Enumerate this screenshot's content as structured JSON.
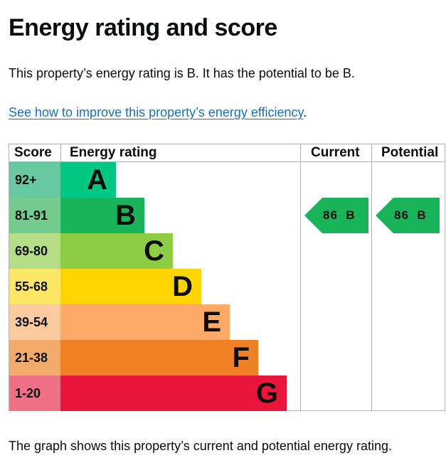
{
  "title": "Energy rating and score",
  "intro": "This property’s energy rating is B. It has the potential to be B.",
  "link": {
    "text": "See how to improve this property’s energy efficiency",
    "suffix": "."
  },
  "footer": "The graph shows this property’s current and potential energy rating.",
  "colors": {
    "link": "#1d70b8",
    "border": "#b1b4b6",
    "text": "#0b0c0c"
  },
  "chart_data": {
    "type": "table",
    "headers": {
      "score": "Score",
      "rating": "Energy rating",
      "current": "Current",
      "potential": "Potential"
    },
    "bands": [
      {
        "range": "92+",
        "letter": "A",
        "bar_color": "#00c781",
        "score_bg": "#67c9a0"
      },
      {
        "range": "81-91",
        "letter": "B",
        "bar_color": "#19b459",
        "score_bg": "#75cc8f"
      },
      {
        "range": "69-80",
        "letter": "C",
        "bar_color": "#8dce46",
        "score_bg": "#b5dd85"
      },
      {
        "range": "55-68",
        "letter": "D",
        "bar_color": "#ffd500",
        "score_bg": "#ffe766"
      },
      {
        "range": "39-54",
        "letter": "E",
        "bar_color": "#fcaa65",
        "score_bg": "#fbcb9f"
      },
      {
        "range": "21-38",
        "letter": "F",
        "bar_color": "#ef8023",
        "score_bg": "#f4aa6b"
      },
      {
        "range": "1-20",
        "letter": "G",
        "bar_color": "#e9153b",
        "score_bg": "#f07186"
      }
    ],
    "current": {
      "score": "86",
      "band": "B",
      "color": "#19b459"
    },
    "potential": {
      "score": "86",
      "band": "B",
      "color": "#19b459"
    }
  }
}
